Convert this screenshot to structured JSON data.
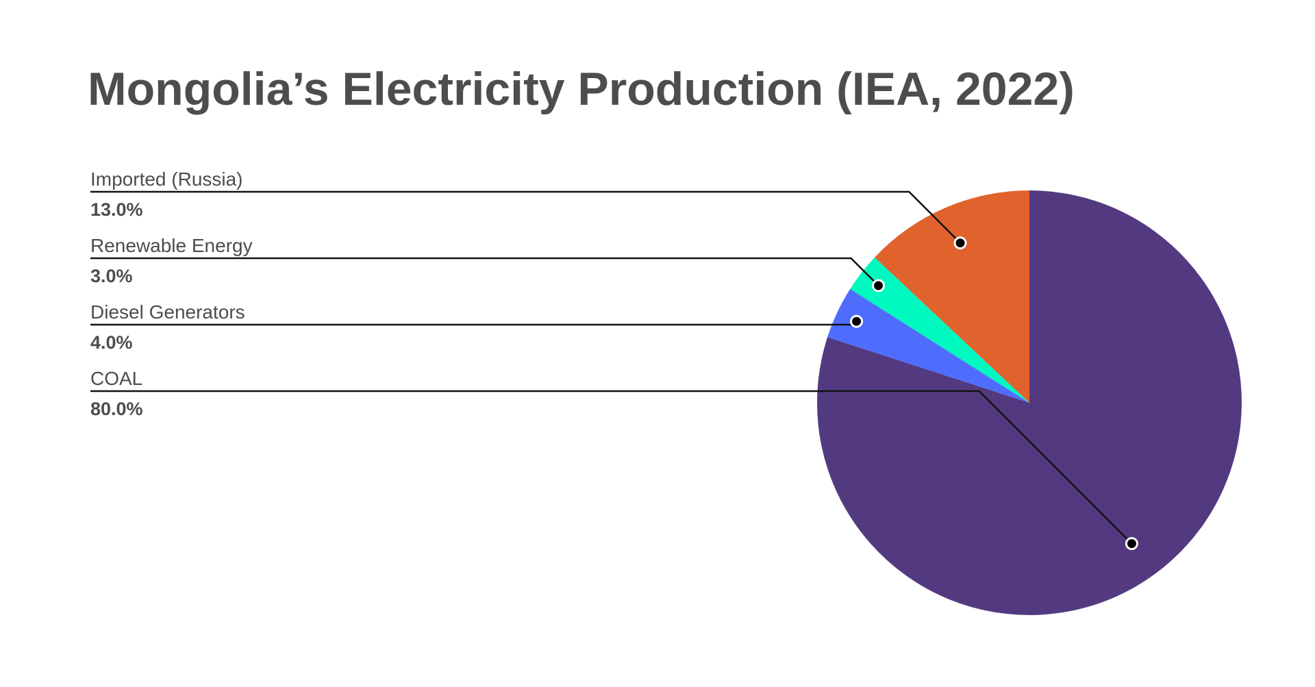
{
  "chart_data": {
    "type": "pie",
    "title": "Mongolia’s Electricity Production (IEA, 2022)",
    "slices": [
      {
        "label": "COAL",
        "value": 80.0,
        "value_label": "80.0%",
        "color": "#533a80"
      },
      {
        "label": "Diesel Generators",
        "value": 4.0,
        "value_label": "4.0%",
        "color": "#4f6dfc"
      },
      {
        "label": "Renewable Energy",
        "value": 3.0,
        "value_label": "3.0%",
        "color": "#00f9bf"
      },
      {
        "label": "Imported (Russia)",
        "value": 13.0,
        "value_label": "13.0%",
        "color": "#e0622d"
      }
    ],
    "start_angle_deg": 0,
    "direction": "clockwise",
    "legend": "none",
    "labels_position": "left"
  }
}
